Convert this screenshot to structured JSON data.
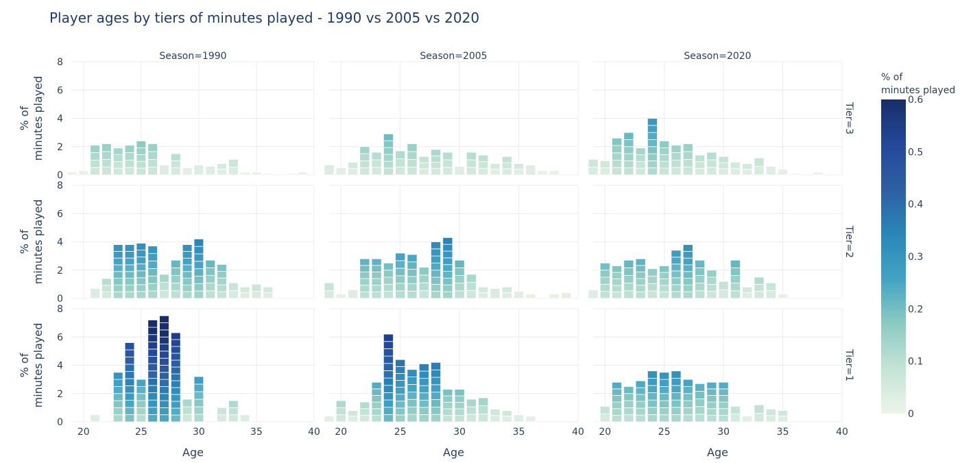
{
  "chart_data": {
    "type": "bar",
    "title": "Player ages by tiers of minutes played - 1990 vs 2005 vs 2020",
    "xlabel": "Age",
    "ylabel": "% of minutes played",
    "ylabel_lines": [
      "% of",
      "minutes played"
    ],
    "xlim": [
      19,
      40
    ],
    "ylim": [
      0,
      8
    ],
    "x_ticks": [
      20,
      25,
      30,
      35,
      40
    ],
    "y_ticks": [
      0,
      2,
      4,
      6,
      8
    ],
    "grid": true,
    "facet_columns": [
      "Season=1990",
      "Season=2005",
      "Season=2020"
    ],
    "facet_rows": [
      "Tier=3",
      "Tier=2",
      "Tier=1"
    ],
    "colorbar": {
      "title_lines": [
        "% of",
        "minutes played"
      ],
      "min": 0,
      "max": 0.6,
      "ticks": [
        "0",
        "0.1",
        "0.2",
        "0.3",
        "0.4",
        "0.5",
        "0.6"
      ],
      "colors": [
        "#eef4ea",
        "#c4e3d6",
        "#8ccbc2",
        "#43a3c3",
        "#2b86b8",
        "#2d5fa2",
        "#23489a",
        "#172f68"
      ]
    },
    "panels": [
      {
        "season": "1990",
        "tier": "3",
        "x": [
          19,
          20,
          21,
          22,
          23,
          24,
          25,
          26,
          27,
          28,
          29,
          30,
          31,
          32,
          33,
          34,
          35,
          36,
          38,
          39
        ],
        "values": [
          0.2,
          0.3,
          2.1,
          2.2,
          1.9,
          2.1,
          2.4,
          2.2,
          0.7,
          1.5,
          0.5,
          0.7,
          0.6,
          0.8,
          1.1,
          0.2,
          0.2,
          0.1,
          0.1,
          0.2
        ]
      },
      {
        "season": "2005",
        "tier": "3",
        "x": [
          19,
          20,
          21,
          22,
          23,
          24,
          25,
          26,
          27,
          28,
          29,
          30,
          31,
          32,
          33,
          34,
          35,
          36,
          37,
          38
        ],
        "values": [
          0.7,
          0.5,
          0.9,
          2.0,
          1.6,
          2.9,
          1.7,
          2.2,
          1.3,
          1.8,
          1.6,
          0.6,
          1.6,
          1.4,
          0.8,
          1.3,
          0.8,
          0.7,
          0.3,
          0.3
        ]
      },
      {
        "season": "2020",
        "tier": "3",
        "x": [
          19,
          20,
          21,
          22,
          23,
          24,
          25,
          26,
          27,
          28,
          29,
          30,
          31,
          32,
          33,
          34,
          35,
          36,
          38
        ],
        "values": [
          1.1,
          1.0,
          2.6,
          3.0,
          1.9,
          4.0,
          2.4,
          2.1,
          2.2,
          1.4,
          1.6,
          1.3,
          0.9,
          0.8,
          1.2,
          0.6,
          0.4,
          0.1,
          0.2
        ]
      },
      {
        "season": "1990",
        "tier": "2",
        "x": [
          21,
          22,
          23,
          24,
          25,
          26,
          27,
          28,
          29,
          30,
          31,
          32,
          33,
          34,
          35,
          36
        ],
        "values": [
          0.7,
          1.4,
          3.8,
          3.8,
          3.9,
          3.7,
          1.7,
          2.7,
          3.8,
          4.2,
          2.7,
          2.4,
          1.1,
          0.8,
          1.0,
          0.8
        ]
      },
      {
        "season": "2005",
        "tier": "2",
        "x": [
          19,
          20,
          21,
          22,
          23,
          24,
          25,
          26,
          27,
          28,
          29,
          30,
          31,
          32,
          33,
          34,
          35,
          36,
          38,
          39
        ],
        "values": [
          1.1,
          0.3,
          0.6,
          2.8,
          2.8,
          2.5,
          3.2,
          3.1,
          2.2,
          4.0,
          4.3,
          2.7,
          1.7,
          0.8,
          0.7,
          0.8,
          0.5,
          0.3,
          0.3,
          0.4
        ]
      },
      {
        "season": "2020",
        "tier": "2",
        "x": [
          19,
          20,
          21,
          22,
          23,
          24,
          25,
          26,
          27,
          28,
          29,
          30,
          31,
          32,
          33,
          34,
          35
        ],
        "values": [
          0.6,
          2.5,
          2.3,
          2.7,
          2.8,
          2.1,
          2.3,
          3.4,
          3.8,
          2.7,
          2.0,
          1.2,
          2.7,
          0.8,
          1.5,
          1.1,
          0.3
        ]
      },
      {
        "season": "1990",
        "tier": "1",
        "x": [
          21,
          23,
          24,
          25,
          26,
          27,
          28,
          29,
          30,
          32,
          33,
          34
        ],
        "values": [
          0.5,
          3.5,
          5.6,
          3.0,
          7.2,
          7.5,
          6.3,
          1.6,
          3.2,
          1.0,
          1.5,
          0.5
        ]
      },
      {
        "season": "2005",
        "tier": "1",
        "x": [
          19,
          20,
          21,
          22,
          23,
          24,
          25,
          26,
          27,
          28,
          29,
          30,
          31,
          32,
          33,
          34,
          35,
          36
        ],
        "values": [
          0.4,
          1.5,
          0.8,
          1.4,
          2.8,
          6.2,
          4.4,
          3.7,
          4.1,
          4.2,
          2.3,
          2.3,
          1.6,
          1.7,
          0.9,
          0.8,
          0.5,
          0.4
        ]
      },
      {
        "season": "2020",
        "tier": "1",
        "x": [
          20,
          21,
          22,
          23,
          24,
          25,
          26,
          27,
          28,
          29,
          30,
          31,
          32,
          33,
          34,
          35
        ],
        "values": [
          1.1,
          2.8,
          2.5,
          2.9,
          3.6,
          3.5,
          3.6,
          3.0,
          2.7,
          2.8,
          2.8,
          1.1,
          0.4,
          1.2,
          0.9,
          0.8
        ]
      }
    ]
  }
}
